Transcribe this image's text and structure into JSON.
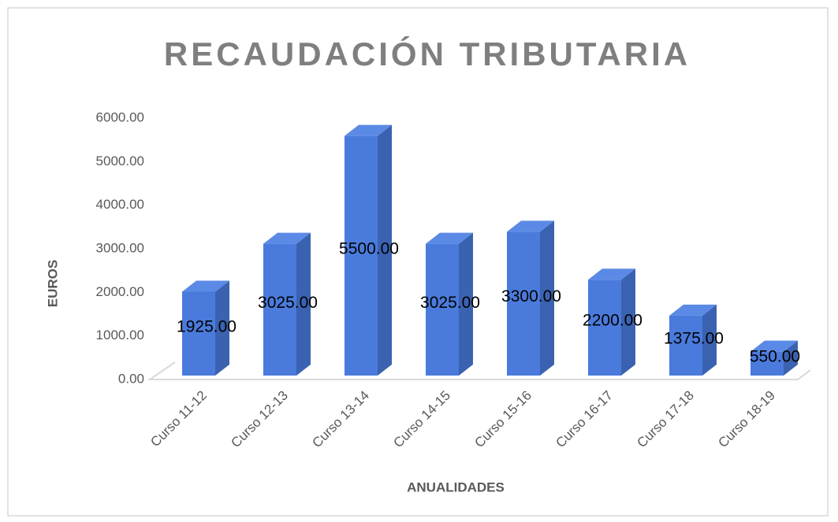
{
  "chart_data": {
    "type": "bar3d",
    "title": "RECAUDACIÓN TRIBUTARIA",
    "y_label": "EUROS",
    "x_label": "ANUALIDADES",
    "categories": [
      "Curso 11-12",
      "Curso 12-13",
      "Curso 13-14",
      "Curso 14-15",
      "Curso 15-16",
      "Curso 16-17",
      "Curso 17-18",
      "Curso 18-19"
    ],
    "values": [
      1925,
      3025,
      5500,
      3025,
      3300,
      2200,
      1375,
      550
    ],
    "value_labels": [
      "1925.00",
      "3025.00",
      "5500.00",
      "3025.00",
      "3300.00",
      "2200.00",
      "1375.00",
      "550.00"
    ],
    "color": "#4a7bdc",
    "ylim": [
      0,
      6000
    ],
    "yticks": [
      {
        "value": 0,
        "label": "0.00"
      },
      {
        "value": 1000,
        "label": "1000.00"
      },
      {
        "value": 2000,
        "label": "2000.00"
      },
      {
        "value": 3000,
        "label": "3000.00"
      },
      {
        "value": 4000,
        "label": "4000.00"
      },
      {
        "value": 5000,
        "label": "5000.00"
      },
      {
        "value": 6000,
        "label": "6000.00"
      }
    ]
  }
}
